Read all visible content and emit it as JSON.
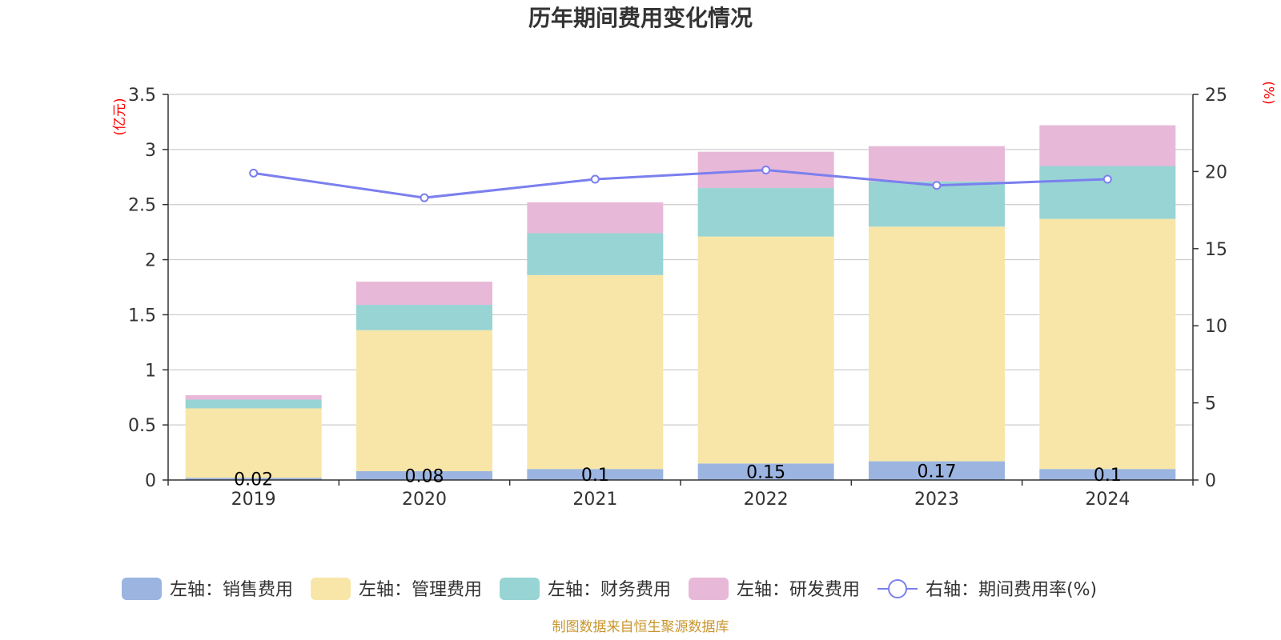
{
  "chart_data": {
    "type": "bar",
    "stacked": true,
    "title": "历年期间费用变化情况",
    "left_axis_label": "(亿元)",
    "right_axis_label": "(%)",
    "categories": [
      "2019",
      "2020",
      "2021",
      "2022",
      "2023",
      "2024"
    ],
    "left_axis": {
      "ylim": [
        0,
        3.5
      ],
      "ticks": [
        "0",
        "0.5",
        "1",
        "1.5",
        "2",
        "2.5",
        "3",
        "3.5"
      ]
    },
    "right_axis": {
      "ylim": [
        0,
        25
      ],
      "ticks": [
        "0",
        "5",
        "10",
        "15",
        "20",
        "25"
      ]
    },
    "grid": true,
    "legend_position": "bottom",
    "series": [
      {
        "name": "左轴：销售费用",
        "type": "bar",
        "axis": "left",
        "color": "#9bb5e0",
        "values": [
          0.02,
          0.08,
          0.1,
          0.15,
          0.17,
          0.1
        ],
        "data_labels": [
          "0.02",
          "0.08",
          "0.1",
          "0.15",
          "0.17",
          "0.1"
        ]
      },
      {
        "name": "左轴：管理费用",
        "type": "bar",
        "axis": "left",
        "color": "#f8e6a8",
        "values": [
          0.63,
          1.28,
          1.76,
          2.06,
          2.13,
          2.27
        ]
      },
      {
        "name": "左轴：财务费用",
        "type": "bar",
        "axis": "left",
        "color": "#98d4d4",
        "values": [
          0.08,
          0.23,
          0.38,
          0.44,
          0.41,
          0.48
        ]
      },
      {
        "name": "左轴：研发费用",
        "type": "bar",
        "axis": "left",
        "color": "#e8b8d8",
        "values": [
          0.04,
          0.21,
          0.28,
          0.33,
          0.32,
          0.37
        ]
      },
      {
        "name": "右轴：期间费用率(%)",
        "type": "line",
        "axis": "right",
        "color": "#7b7fee",
        "values": [
          19.9,
          18.3,
          19.5,
          20.1,
          19.1,
          19.5
        ]
      }
    ]
  },
  "source_note": "制图数据来自恒生聚源数据库"
}
